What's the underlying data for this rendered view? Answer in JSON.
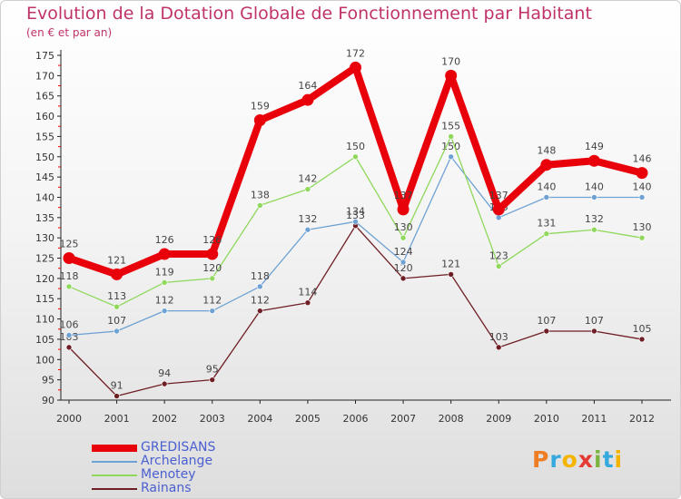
{
  "chart_data": {
    "type": "line",
    "title": "Evolution de la Dotation Globale de Fonctionnement par Habitant",
    "subtitle": "(en € et par an)",
    "xlabel": "",
    "ylabel": "",
    "categories": [
      "2000",
      "2001",
      "2002",
      "2003",
      "2004",
      "2005",
      "2006",
      "2007",
      "2008",
      "2009",
      "2010",
      "2011",
      "2012"
    ],
    "ylim": [
      90,
      175
    ],
    "yticks": [
      90,
      95,
      100,
      105,
      110,
      115,
      120,
      125,
      130,
      135,
      140,
      145,
      150,
      155,
      160,
      165,
      170,
      175
    ],
    "grid": false,
    "legend_position": "bottom-left",
    "series": [
      {
        "name": "GREDISANS",
        "color": "#e8000b",
        "values": [
          125,
          121,
          126,
          126,
          159,
          164,
          172,
          137,
          170,
          137,
          148,
          149,
          146
        ]
      },
      {
        "name": "Archelange",
        "color": "#6fa2d4",
        "values": [
          106,
          107,
          112,
          112,
          118,
          132,
          134,
          124,
          150,
          135,
          140,
          140,
          140
        ]
      },
      {
        "name": "Menotey",
        "color": "#8fd85c",
        "values": [
          118,
          113,
          119,
          120,
          138,
          142,
          150,
          130,
          155,
          123,
          131,
          132,
          130
        ]
      },
      {
        "name": "Rainans",
        "color": "#6e1e24",
        "values": [
          103,
          91,
          94,
          95,
          112,
          114,
          133,
          120,
          121,
          103,
          107,
          107,
          105
        ]
      }
    ]
  },
  "logo": {
    "letters": [
      "P",
      "r",
      "o",
      "x",
      "i",
      "t",
      "i"
    ],
    "colors": [
      "#ee7d23",
      "#35a9de",
      "#f4b400",
      "#e53935",
      "#7cb342",
      "#35a9de",
      "#f4b400"
    ]
  }
}
